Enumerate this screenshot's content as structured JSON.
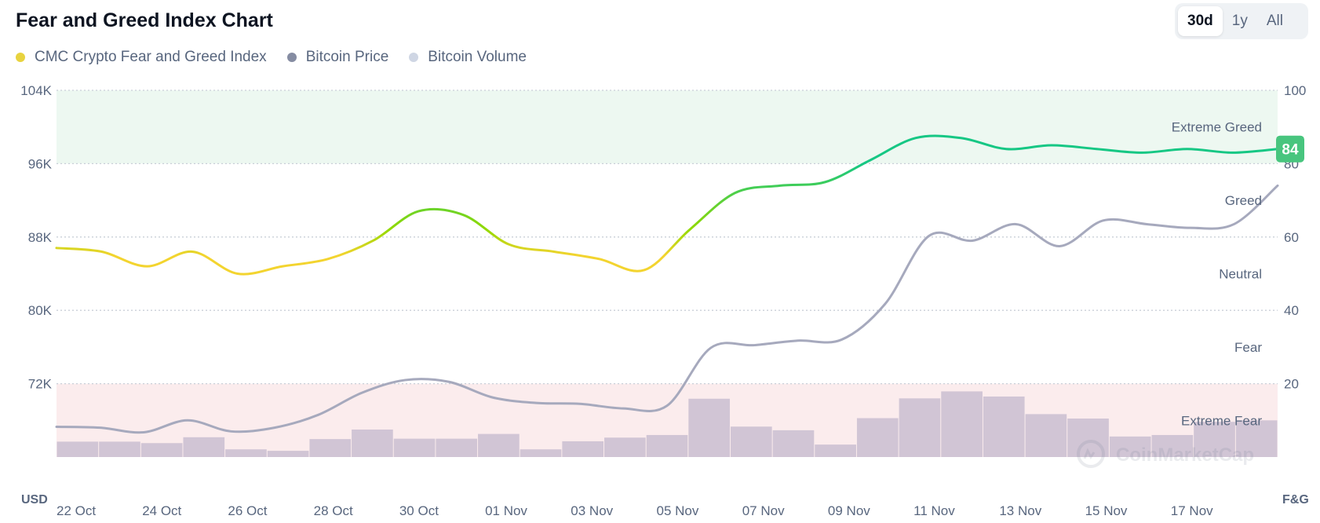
{
  "header": {
    "title": "Fear and Greed Index Chart",
    "ranges": [
      {
        "label": "30d",
        "active": true
      },
      {
        "label": "1y",
        "active": false
      },
      {
        "label": "All",
        "active": false
      }
    ]
  },
  "legend": [
    {
      "label": "CMC Crypto Fear and Greed Index",
      "color": "#e8d33f"
    },
    {
      "label": "Bitcoin Price",
      "color": "#858ca2"
    },
    {
      "label": "Bitcoin Volume",
      "color": "#cfd6e4"
    }
  ],
  "watermark": "CoinMarketCap",
  "chart_data": {
    "type": "line",
    "left_axis": {
      "unit_label": "USD",
      "ticks": [
        "104K",
        "96K",
        "88K",
        "80K",
        "72K"
      ],
      "range": [
        64000,
        104000
      ]
    },
    "right_axis": {
      "unit_label": "F&G",
      "ticks": [
        "100",
        "80",
        "60",
        "40",
        "20"
      ],
      "range": [
        0,
        100
      ]
    },
    "x_ticks": [
      "22 Oct",
      "24 Oct",
      "26 Oct",
      "28 Oct",
      "30 Oct",
      "01 Nov",
      "03 Nov",
      "05 Nov",
      "07 Nov",
      "09 Nov",
      "11 Nov",
      "13 Nov",
      "15 Nov",
      "17 Nov"
    ],
    "zones": [
      {
        "label": "Extreme Greed",
        "from": 80,
        "to": 100
      },
      {
        "label": "Greed",
        "from": 60,
        "to": 80
      },
      {
        "label": "Neutral",
        "from": 40,
        "to": 60
      },
      {
        "label": "Fear",
        "from": 20,
        "to": 40
      },
      {
        "label": "Extreme Fear",
        "from": 0,
        "to": 20
      }
    ],
    "current_value": "84",
    "series": [
      {
        "name": "CMC Crypto Fear and Greed Index",
        "axis": "right",
        "values": [
          57,
          56,
          52,
          56,
          50,
          52,
          54,
          59,
          67,
          66,
          58,
          56,
          54,
          51,
          62,
          72,
          74,
          75,
          81,
          87,
          87,
          84,
          85,
          84,
          83,
          84,
          83,
          84
        ]
      },
      {
        "name": "Bitcoin Price",
        "axis": "left",
        "values": [
          67300,
          67200,
          66700,
          68000,
          66800,
          67200,
          68600,
          71000,
          72400,
          72200,
          70500,
          69900,
          69800,
          69300,
          69600,
          75900,
          76200,
          76700,
          76800,
          80700,
          88100,
          87600,
          89400,
          87000,
          89800,
          89400,
          89000,
          89400,
          93600
        ]
      },
      {
        "name": "Bitcoin Volume",
        "axis": "right",
        "values": [
          4.2,
          4.2,
          3.8,
          5.4,
          2.1,
          1.7,
          4.9,
          7.5,
          5.0,
          5.0,
          6.3,
          2.1,
          4.3,
          5.3,
          6.0,
          15.9,
          8.3,
          7.3,
          3.4,
          10.6,
          16.0,
          17.9,
          16.5,
          11.7,
          10.5,
          5.6,
          6.0,
          9.6,
          10.0
        ]
      }
    ]
  }
}
